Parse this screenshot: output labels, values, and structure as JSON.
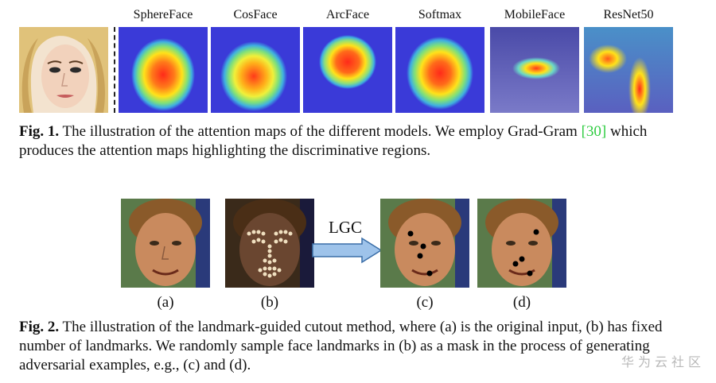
{
  "figure1": {
    "model_labels": [
      "SphereFace",
      "CosFace",
      "ArcFace",
      "Softmax",
      "MobileFace",
      "ResNet50"
    ],
    "caption_label": "Fig. 1.",
    "caption_text_a": " The illustration of the attention maps of the different models. We employ Grad-Gram ",
    "caption_ref": "[30]",
    "caption_text_b": " which produces the attention maps highlighting the discriminative regions."
  },
  "figure2": {
    "arrow_label": "LGC",
    "sub_labels": [
      "(a)",
      "(b)",
      "(c)",
      "(d)"
    ],
    "caption_label": "Fig. 2.",
    "caption_text": " The illustration of the landmark-guided cutout method, where (a) is the original input, (b) has fixed number of landmarks. We randomly sample face landmarks in (b) as a mask in the process of generating adversarial examples, e.g., (c) and (d)."
  },
  "watermark": "华为云社区",
  "colors": {
    "heat_red": "#ff2a1a",
    "heat_yellow": "#ffe21a",
    "heat_cyan": "#3fe0d0",
    "heat_blue": "#3a3ad8",
    "skin": "#c98a5e",
    "hair": "#8a5a2a",
    "arrow_fill": "#9ec3ea",
    "citation": "#2ecc40"
  }
}
